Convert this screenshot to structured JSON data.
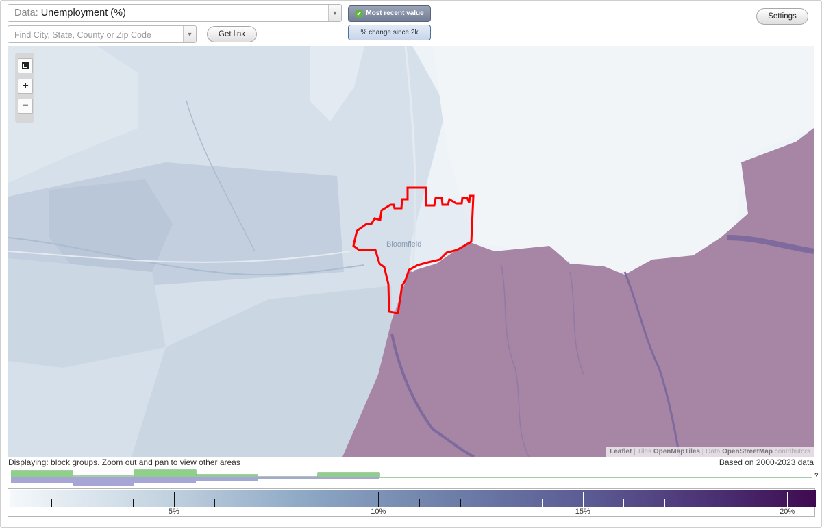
{
  "data_select": {
    "prefix": "Data:",
    "value": "Unemployment (%)"
  },
  "search": {
    "placeholder": "Find City, State, County or Zip Code"
  },
  "buttons": {
    "get_link": "Get link",
    "settings": "Settings",
    "most_recent": "Most recent value",
    "change_since": "% change since 2k"
  },
  "map": {
    "place_label": "Bloomfield",
    "attribution": {
      "leaflet": "Leaflet",
      "sep1": " | Tiles ",
      "tiles": "OpenMapTiles",
      "sep2": " | Data ",
      "data": "OpenStreetMap",
      "contrib": " contributors"
    },
    "colors": {
      "water_light": "#eef3f7",
      "low_blue": "#cdd9e4",
      "mid_blue": "#b8c7d8",
      "high_purple": "#a785a4",
      "highlight": "#ff0000"
    }
  },
  "status": {
    "displaying": "Displaying: block groups. Zoom out and pan to view other areas",
    "based_on": "Based on 2000-2023 data"
  },
  "histogram": {
    "question_mark": "?",
    "colors": {
      "green": "#8fcf8a",
      "purple": "#a7a4d6"
    }
  },
  "legend": {
    "labels": [
      "5%",
      "10%",
      "15%",
      "20%"
    ],
    "min": 1,
    "max": 20.7
  }
}
